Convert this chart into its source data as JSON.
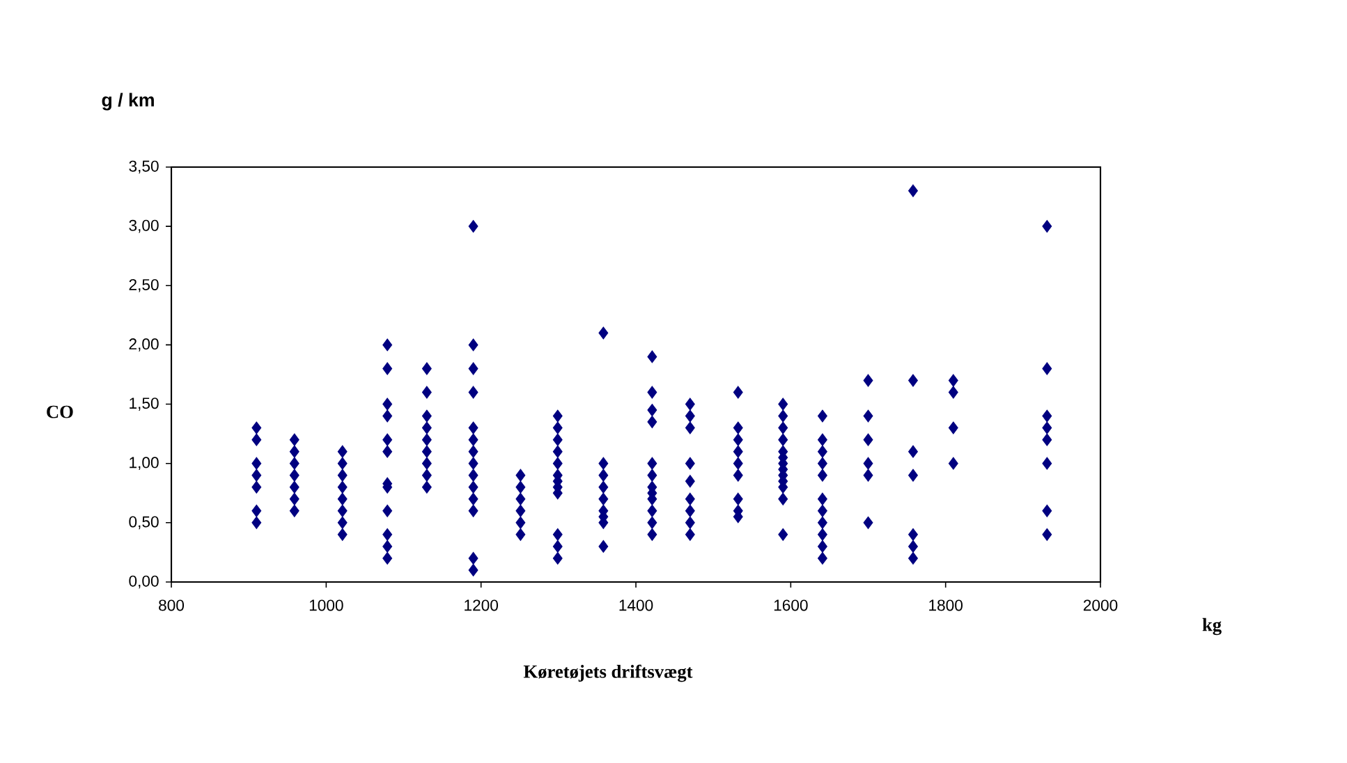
{
  "chart_data": {
    "type": "scatter",
    "xlabel": "Køretøjets driftsvægt",
    "ylabel": "CO",
    "annotations": [
      "g / km",
      "kg"
    ],
    "x": [
      910,
      910,
      910,
      910,
      910,
      910,
      910,
      959,
      959,
      959,
      959,
      959,
      959,
      959,
      1021,
      1021,
      1021,
      1021,
      1021,
      1021,
      1021,
      1021,
      1079,
      1079,
      1079,
      1079,
      1079,
      1079,
      1079,
      1079,
      1079,
      1079,
      1079,
      1079,
      1130,
      1130,
      1130,
      1130,
      1130,
      1130,
      1130,
      1130,
      1130,
      1190,
      1190,
      1190,
      1190,
      1190,
      1190,
      1190,
      1190,
      1190,
      1190,
      1190,
      1190,
      1190,
      1190,
      1251,
      1251,
      1251,
      1251,
      1251,
      1251,
      1299,
      1299,
      1299,
      1299,
      1299,
      1299,
      1299,
      1299,
      1299,
      1299,
      1299,
      1299,
      1358,
      1358,
      1358,
      1358,
      1358,
      1358,
      1358,
      1358,
      1358,
      1421,
      1421,
      1421,
      1421,
      1421,
      1421,
      1421,
      1421,
      1421,
      1421,
      1421,
      1421,
      1470,
      1470,
      1470,
      1470,
      1470,
      1470,
      1470,
      1470,
      1470,
      1532,
      1532,
      1532,
      1532,
      1532,
      1532,
      1532,
      1532,
      1532,
      1590,
      1590,
      1590,
      1590,
      1590,
      1590,
      1590,
      1590,
      1590,
      1590,
      1590,
      1590,
      1590,
      1641,
      1641,
      1641,
      1641,
      1641,
      1641,
      1641,
      1641,
      1641,
      1641,
      1641,
      1700,
      1700,
      1700,
      1700,
      1700,
      1700,
      1758,
      1758,
      1758,
      1758,
      1758,
      1758,
      1758,
      1810,
      1810,
      1810,
      1810,
      1931,
      1931,
      1931,
      1931,
      1931,
      1931,
      1931,
      1931
    ],
    "values": [
      1.3,
      1.2,
      1.0,
      0.9,
      0.8,
      0.6,
      0.5,
      1.2,
      1.1,
      1.0,
      0.9,
      0.8,
      0.7,
      0.6,
      1.1,
      1.0,
      0.9,
      0.8,
      0.7,
      0.6,
      0.5,
      0.4,
      2.0,
      1.8,
      1.5,
      1.4,
      1.2,
      1.1,
      0.83,
      0.8,
      0.6,
      0.4,
      0.3,
      0.2,
      1.8,
      1.6,
      1.4,
      1.3,
      1.2,
      1.1,
      1.0,
      0.9,
      0.8,
      3.0,
      2.0,
      1.8,
      1.6,
      1.3,
      1.2,
      1.1,
      1.0,
      0.9,
      0.8,
      0.7,
      0.6,
      0.2,
      0.1,
      0.9,
      0.8,
      0.7,
      0.6,
      0.5,
      0.4,
      1.4,
      1.3,
      1.2,
      1.1,
      1.0,
      0.9,
      0.85,
      0.8,
      0.75,
      0.4,
      0.3,
      0.2,
      2.1,
      1.0,
      0.9,
      0.8,
      0.7,
      0.6,
      0.55,
      0.5,
      0.3,
      1.9,
      1.6,
      1.45,
      1.35,
      1.0,
      0.9,
      0.8,
      0.75,
      0.7,
      0.6,
      0.5,
      0.4,
      1.5,
      1.4,
      1.3,
      1.0,
      0.85,
      0.7,
      0.6,
      0.5,
      0.4,
      1.6,
      1.3,
      1.2,
      1.1,
      1.0,
      0.9,
      0.7,
      0.6,
      0.55,
      1.5,
      1.4,
      1.3,
      1.2,
      1.1,
      1.05,
      1.0,
      0.95,
      0.9,
      0.85,
      0.8,
      0.7,
      0.4,
      1.4,
      1.2,
      1.1,
      1.0,
      0.9,
      0.7,
      0.6,
      0.5,
      0.4,
      0.3,
      0.2,
      1.7,
      1.4,
      1.2,
      1.0,
      0.9,
      0.5,
      3.3,
      1.7,
      1.1,
      0.9,
      0.4,
      0.3,
      0.2,
      1.7,
      1.6,
      1.3,
      1.0,
      3.0,
      1.8,
      1.4,
      1.3,
      1.2,
      1.0,
      0.6,
      0.4
    ],
    "color": "#000080",
    "marker": "diamond",
    "xlim": [
      800,
      2000
    ],
    "xticks": [
      800,
      1000,
      1200,
      1400,
      1600,
      1800,
      2000
    ],
    "ylim": [
      0,
      3.5
    ],
    "yticks": [
      {
        "value": 0,
        "label": "0,00"
      },
      {
        "value": 0.5,
        "label": "0,50"
      },
      {
        "value": 1,
        "label": "1,00"
      },
      {
        "value": 1.5,
        "label": "1,50"
      },
      {
        "value": 2,
        "label": "2,00"
      },
      {
        "value": 2.5,
        "label": "2,50"
      },
      {
        "value": 3,
        "label": "3,00"
      },
      {
        "value": 3.5,
        "label": "3,50"
      }
    ],
    "grid": false
  }
}
